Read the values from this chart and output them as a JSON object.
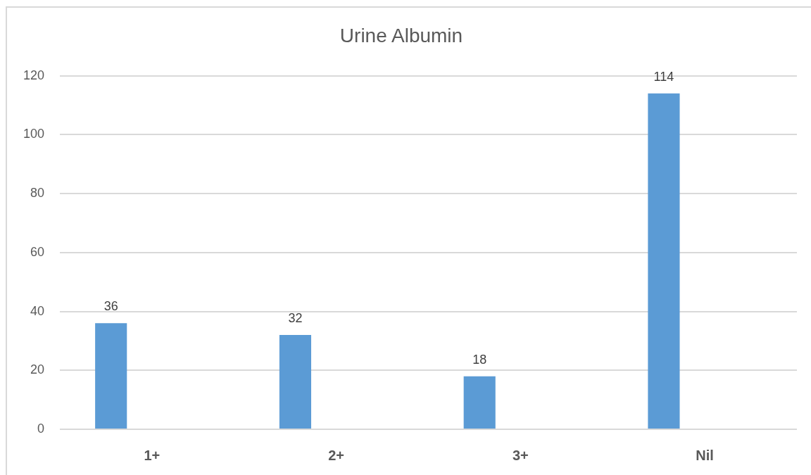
{
  "chart_data": {
    "type": "bar",
    "title": "Urine Albumin",
    "categories": [
      "1+",
      "2+",
      "3+",
      "Nil"
    ],
    "values": [
      36,
      32,
      18,
      114
    ],
    "color": "#5b9bd5",
    "ylim": [
      0,
      120
    ],
    "yticks": [
      0,
      20,
      40,
      60,
      80,
      100,
      120
    ],
    "grid": "y",
    "data_labels": true
  }
}
